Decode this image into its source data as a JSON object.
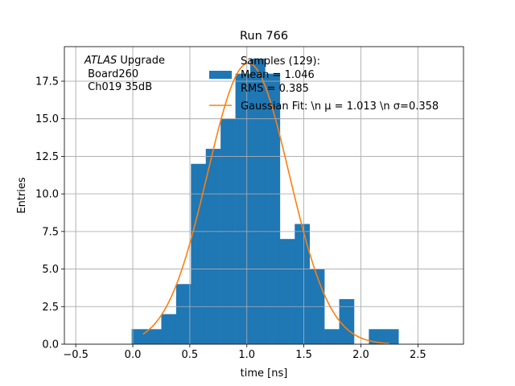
{
  "chart_data": {
    "type": "bar",
    "title": "Run 766",
    "xlabel": "time [ns]",
    "ylabel": "Entries",
    "xlim": [
      -0.6,
      2.9
    ],
    "ylim": [
      0,
      19.8
    ],
    "grid": true,
    "xticks": [
      -0.5,
      0.0,
      0.5,
      1.0,
      1.5,
      2.0,
      2.5
    ],
    "xtick_labels": [
      "−0.5",
      "0.0",
      "0.5",
      "1.0",
      "1.5",
      "2.0",
      "2.5"
    ],
    "yticks": [
      0.0,
      2.5,
      5.0,
      7.5,
      10.0,
      12.5,
      15.0,
      17.5
    ],
    "ytick_labels": [
      "0.0",
      "2.5",
      "5.0",
      "7.5",
      "10.0",
      "12.5",
      "15.0",
      "17.5"
    ],
    "histogram": {
      "color": "#1f77b4",
      "bin_edges": [
        -0.01,
        0.12,
        0.25,
        0.38,
        0.51,
        0.64,
        0.77,
        0.9,
        1.03,
        1.16,
        1.29,
        1.42,
        1.55,
        1.68,
        1.81,
        1.94,
        2.07,
        2.2,
        2.33
      ],
      "counts": [
        1,
        1,
        2,
        4,
        12,
        13,
        15,
        18,
        19,
        18,
        7,
        8,
        5,
        1,
        3,
        0,
        1,
        1
      ]
    },
    "gaussian_fit": {
      "color": "#ff7f0e",
      "mu": 1.013,
      "sigma": 0.358,
      "amplitude": 18.7,
      "x_range": [
        0.09,
        2.25
      ]
    },
    "legend": {
      "placement": "top-right",
      "entries": [
        {
          "label_lines": [
            "Samples (129):",
            "Mean = 1.046",
            "RMS = 0.385"
          ],
          "marker": "patch",
          "color": "#1f77b4"
        },
        {
          "label_lines": [
            "Gaussian Fit: \\n μ = 1.013 \\n σ=0.358"
          ],
          "marker": "line",
          "color": "#ff7f0e"
        }
      ]
    },
    "annotation": {
      "atlas_italic": "ATLAS",
      "line1_rest": " Upgrade",
      "line2": " Board260",
      "line3": " Ch019 35dB"
    }
  }
}
